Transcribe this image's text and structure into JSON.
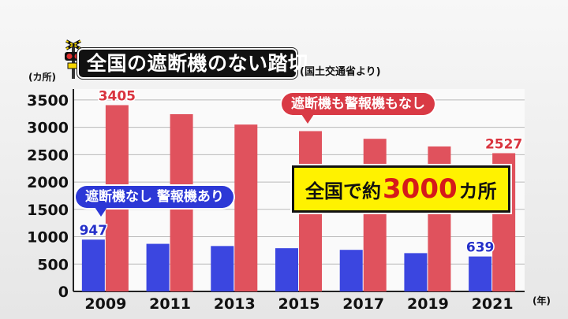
{
  "header": {
    "title": "全国の遮断機のない踏切",
    "source": "(国土交通省より)"
  },
  "callouts": {
    "red": "遮断機も警報機もなし",
    "blue": "遮断機なし 警報機あり"
  },
  "highlight": {
    "prefix": "全国で約",
    "number": "3000",
    "suffix": "カ所"
  },
  "chart_data": {
    "type": "bar",
    "categories": [
      "2009",
      "2011",
      "2013",
      "2015",
      "2017",
      "2019",
      "2021"
    ],
    "series": [
      {
        "name": "遮断機なし 警報機あり",
        "color": "#3b46e0",
        "values": [
          947,
          870,
          830,
          790,
          760,
          700,
          639
        ]
      },
      {
        "name": "遮断機も警報機もなし",
        "color": "#e0525d",
        "values": [
          3405,
          3240,
          3050,
          2930,
          2790,
          2650,
          2527
        ]
      }
    ],
    "data_labels": [
      {
        "series": 0,
        "index": 0,
        "text": "947"
      },
      {
        "series": 1,
        "index": 0,
        "text": "3405"
      },
      {
        "series": 0,
        "index": 6,
        "text": "639"
      },
      {
        "series": 1,
        "index": 6,
        "text": "2527"
      }
    ],
    "y_ticks": [
      0,
      500,
      1000,
      1500,
      2000,
      2500,
      3000,
      3500
    ],
    "ylim": [
      0,
      3700
    ],
    "ylabel": "(カ所)",
    "xlabel": "(年)",
    "grid": true
  }
}
